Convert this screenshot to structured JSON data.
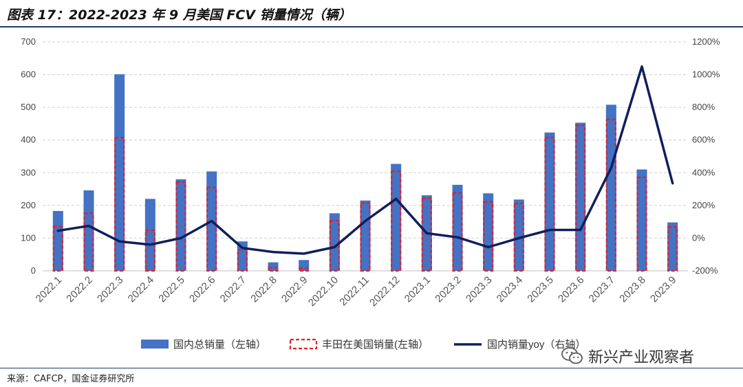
{
  "title": "图表 17：2022-2023 年 9 月美国 FCV 销量情况（辆）",
  "source": "来源：CAFCP，国金证券研究所",
  "watermark": "新兴产业观察者",
  "chart_data": {
    "type": "bar",
    "categories": [
      "2022.1",
      "2022.2",
      "2022.3",
      "2022.4",
      "2022.5",
      "2022.6",
      "2022.7",
      "2022.8",
      "2022.9",
      "2022.10",
      "2022.11",
      "2022.12",
      "2023.1",
      "2023.2",
      "2023.3",
      "2023.4",
      "2023.5",
      "2023.6",
      "2023.7",
      "2023.8",
      "2023.9"
    ],
    "series": [
      {
        "name": "国内总销量（左轴）",
        "kind": "bar",
        "axis": "left",
        "color": "#4472c4",
        "values": [
          183,
          246,
          601,
          220,
          280,
          304,
          90,
          26,
          33,
          176,
          215,
          327,
          231,
          263,
          237,
          218,
          423,
          453,
          508,
          310,
          148
        ]
      },
      {
        "name": "丰田在美国销量(左轴）",
        "kind": "bar-dashed-outline",
        "axis": "left",
        "color": "#e0202a",
        "values": [
          135,
          176,
          407,
          124,
          271,
          255,
          65,
          10,
          8,
          153,
          207,
          304,
          222,
          238,
          211,
          206,
          408,
          445,
          463,
          286,
          134
        ]
      },
      {
        "name": "国内销量yoy（右轴）",
        "kind": "line",
        "axis": "right",
        "color": "#0e1f5b",
        "values": [
          0.45,
          0.75,
          -0.2,
          -0.4,
          0.0,
          1.05,
          -0.6,
          -0.85,
          -0.95,
          -0.55,
          1.05,
          2.4,
          0.3,
          0.05,
          -0.55,
          0.0,
          0.5,
          0.5,
          4.3,
          10.5,
          3.35
        ]
      }
    ],
    "y_left": {
      "min": 0,
      "max": 700,
      "step": 100,
      "ticks": [
        "0",
        "100",
        "200",
        "300",
        "400",
        "500",
        "600",
        "700"
      ]
    },
    "y_right": {
      "min": -2.0,
      "max": 12.0,
      "step": 2.0,
      "ticks": [
        "-200%",
        "0%",
        "200%",
        "400%",
        "600%",
        "800%",
        "1000%",
        "1200%"
      ]
    },
    "grid": "horizontal-dashed",
    "legend": "bottom"
  }
}
